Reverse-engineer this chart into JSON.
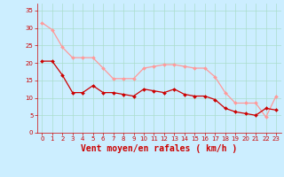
{
  "x": [
    0,
    1,
    2,
    3,
    4,
    5,
    6,
    7,
    8,
    9,
    10,
    11,
    12,
    13,
    14,
    15,
    16,
    17,
    18,
    19,
    20,
    21,
    22,
    23
  ],
  "y_mean": [
    20.5,
    20.5,
    16.5,
    11.5,
    11.5,
    13.5,
    11.5,
    11.5,
    11,
    10.5,
    12.5,
    12,
    11.5,
    12.5,
    11,
    10.5,
    10.5,
    9.5,
    7,
    6,
    5.5,
    5,
    7,
    6.5
  ],
  "y_gust": [
    31.5,
    29.5,
    24.5,
    21.5,
    21.5,
    21.5,
    18.5,
    15.5,
    15.5,
    15.5,
    18.5,
    19,
    19.5,
    19.5,
    19,
    18.5,
    18.5,
    16,
    11.5,
    8.5,
    8.5,
    8.5,
    4.5,
    10.5
  ],
  "line_color_mean": "#cc0000",
  "line_color_gust": "#ff9999",
  "bg_color": "#cceeff",
  "grid_color": "#aaddcc",
  "xlabel": "Vent moyen/en rafales ( km/h )",
  "xlabel_color": "#cc0000",
  "xlabel_fontsize": 7,
  "tick_color": "#cc0000",
  "ylim": [
    0,
    37
  ],
  "xlim": [
    -0.5,
    23.5
  ],
  "yticks": [
    0,
    5,
    10,
    15,
    20,
    25,
    30,
    35
  ],
  "xticks": [
    0,
    1,
    2,
    3,
    4,
    5,
    6,
    7,
    8,
    9,
    10,
    11,
    12,
    13,
    14,
    15,
    16,
    17,
    18,
    19,
    20,
    21,
    22,
    23
  ]
}
